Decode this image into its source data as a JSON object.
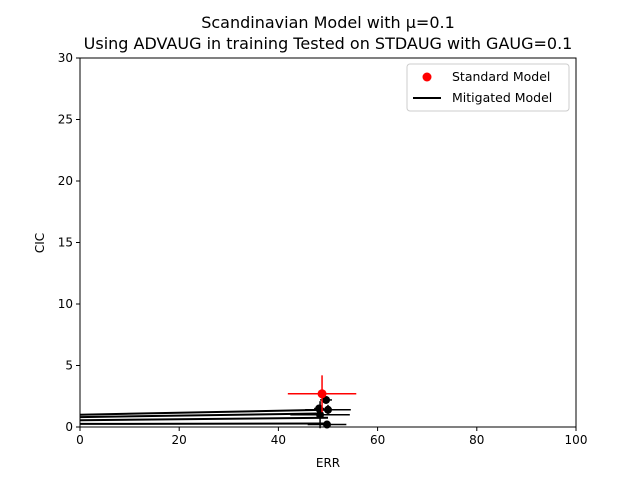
{
  "chart_data": {
    "type": "scatter",
    "title": "Scandinavian Model with μ=0.1",
    "subtitle": "Using ADVAUG in training Tested on STDAUG with GAUG=0.1",
    "xlabel": "ERR",
    "ylabel": "CIC",
    "xlim": [
      0,
      100
    ],
    "ylim": [
      0,
      30
    ],
    "xticks": [
      0,
      20,
      40,
      60,
      80,
      100
    ],
    "yticks": [
      0,
      5,
      10,
      15,
      20,
      25,
      30
    ],
    "grid": false,
    "legend_position": "top-right",
    "series": [
      {
        "name": "Standard Model",
        "color": "#ff0000",
        "marker": "circle",
        "points": [
          {
            "x": 48.8,
            "y": 2.7,
            "xerr": 6.9,
            "yerr": 1.5
          }
        ]
      },
      {
        "name": "Mitigated Model",
        "color": "#000000",
        "marker": "line",
        "points": [
          {
            "x": 49.6,
            "y": 2.2,
            "xerr": 1.2,
            "yerr": 0.3
          },
          {
            "x": 48.2,
            "y": 1.5,
            "xerr": 1.0,
            "yerr": 0.3
          },
          {
            "x": 50.0,
            "y": 1.4,
            "xerr": 4.6,
            "yerr": 0.4
          },
          {
            "x": 48.4,
            "y": 1.0,
            "xerr": 6.0,
            "yerr": 1.1
          },
          {
            "x": 49.8,
            "y": 0.2,
            "xerr": 3.9,
            "yerr": 0.3
          }
        ],
        "lines": [
          {
            "x": [
              0,
              49.6
            ],
            "y": [
              1.0,
              1.4
            ]
          },
          {
            "x": [
              0,
              48.2
            ],
            "y": [
              0.8,
              1.1
            ]
          },
          {
            "x": [
              0,
              50.0
            ],
            "y": [
              0.55,
              0.75
            ]
          },
          {
            "x": [
              0,
              49.8
            ],
            "y": [
              0.25,
              0.28
            ]
          }
        ]
      }
    ]
  }
}
